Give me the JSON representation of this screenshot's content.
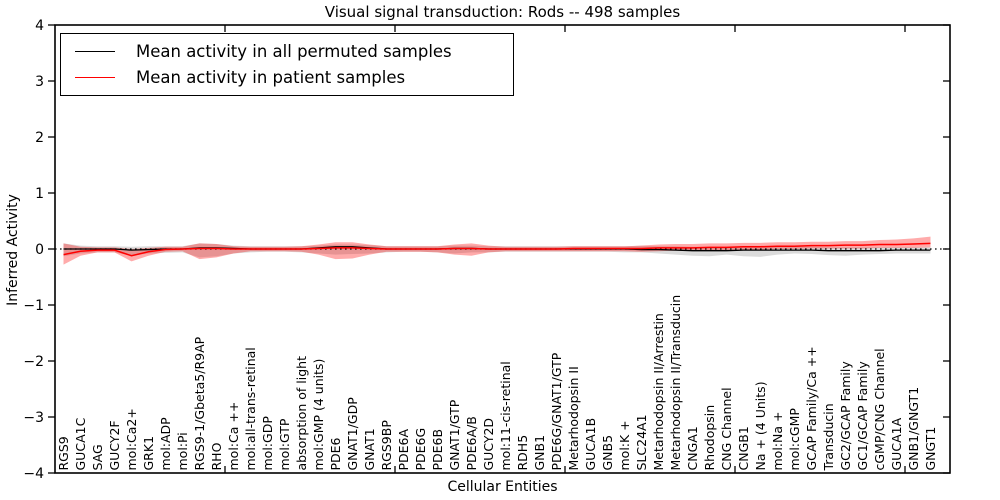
{
  "title": "Visual signal transduction: Rods -- 498 samples",
  "legend": {
    "items": [
      {
        "label": "Mean activity in all permuted samples",
        "color": "#000000"
      },
      {
        "label": "Mean activity in patient samples",
        "color": "#ff0000"
      }
    ]
  },
  "chart_data": {
    "type": "line",
    "title": "Visual signal transduction: Rods -- 498 samples",
    "xlabel": "Cellular Entities",
    "ylabel": "Inferred Activity",
    "ylim": [
      -4,
      4
    ],
    "yticks": [
      4,
      3,
      2,
      1,
      0,
      -1,
      -2,
      -3,
      -4
    ],
    "xticks": [
      10,
      20,
      30,
      40,
      50
    ],
    "grid": false,
    "zero_reference_line": true,
    "legend_position": "upper left",
    "categories": [
      "RGS9",
      "GUCA1C",
      "SAG",
      "GUCY2F",
      "mol:Ca2+",
      "GRK1",
      "mol:ADP",
      "mol:Pi",
      "RGS9-1/Gbeta5/R9AP",
      "RHO",
      "mol:Ca ++",
      "mol:all-trans-retinal",
      "mol:GDP",
      "mol:GTP",
      "absorption of light",
      "mol:GMP (4 units)",
      "PDE6",
      "GNAT1/GDP",
      "GNAT1",
      "RGS9BP",
      "PDE6A",
      "PDE6G",
      "PDE6B",
      "GNAT1/GTP",
      "PDE6A/B",
      "GUCY2D",
      "mol:11-cis-retinal",
      "RDH5",
      "GNB1",
      "PDE6G/GNAT1/GTP",
      "Metarhodopsin II",
      "GUCA1B",
      "GNB5",
      "mol:K +",
      "SLC24A1",
      "Metarhodopsin II/Arrestin",
      "Metarhodopsin II/Transducin",
      "CNGA1",
      "Rhodopsin",
      "CNG Channel",
      "CNGB1",
      "Na + (4 Units)",
      "mol:Na +",
      "mol:cGMP",
      "GCAP Family/Ca ++",
      "Transducin",
      "GC2/GCAP Family",
      "GC1/GCAP Family",
      "cGMP/CNG Channel",
      "GUCA1A",
      "GNB1/GNGT1",
      "GNGT1"
    ],
    "series": [
      {
        "name": "Mean activity in all permuted samples",
        "color": "#000000",
        "band_color": "rgba(0,0,0,0.14)",
        "values": [
          0.0,
          0.0,
          0.0,
          0.0,
          -0.02,
          -0.01,
          0.0,
          0.0,
          0.02,
          0.02,
          0.01,
          0.0,
          0.0,
          0.0,
          0.0,
          0.02,
          0.04,
          0.04,
          0.02,
          0.0,
          0.0,
          0.0,
          0.0,
          0.01,
          0.01,
          0.0,
          0.0,
          0.0,
          0.0,
          0.0,
          0.0,
          0.0,
          0.0,
          0.0,
          -0.01,
          -0.01,
          -0.02,
          -0.03,
          -0.03,
          -0.03,
          -0.02,
          -0.02,
          -0.02,
          -0.02,
          -0.02,
          -0.03,
          -0.03,
          -0.03,
          -0.03,
          -0.02,
          -0.02,
          -0.02
        ],
        "band_low": [
          -0.13,
          -0.08,
          -0.06,
          -0.06,
          -0.12,
          -0.08,
          -0.07,
          -0.06,
          -0.15,
          -0.13,
          -0.08,
          -0.06,
          -0.05,
          -0.05,
          -0.06,
          -0.08,
          -0.1,
          -0.09,
          -0.08,
          -0.06,
          -0.05,
          -0.05,
          -0.06,
          -0.08,
          -0.06,
          -0.06,
          -0.05,
          -0.05,
          -0.05,
          -0.05,
          -0.05,
          -0.05,
          -0.05,
          -0.06,
          -0.06,
          -0.08,
          -0.1,
          -0.12,
          -0.13,
          -0.1,
          -0.13,
          -0.14,
          -0.1,
          -0.08,
          -0.09,
          -0.11,
          -0.12,
          -0.1,
          -0.09,
          -0.08,
          -0.08,
          -0.08
        ],
        "band_high": [
          0.1,
          0.06,
          0.05,
          0.05,
          0.04,
          0.05,
          0.05,
          0.05,
          0.1,
          0.09,
          0.06,
          0.05,
          0.05,
          0.05,
          0.05,
          0.06,
          0.08,
          0.08,
          0.07,
          0.05,
          0.05,
          0.05,
          0.05,
          0.06,
          0.06,
          0.05,
          0.05,
          0.05,
          0.05,
          0.05,
          0.05,
          0.05,
          0.05,
          0.05,
          0.06,
          0.05,
          0.05,
          0.04,
          0.04,
          0.04,
          0.04,
          0.04,
          0.04,
          0.04,
          0.04,
          0.03,
          0.03,
          0.03,
          0.03,
          0.03,
          0.03,
          0.03
        ]
      },
      {
        "name": "Mean activity in patient samples",
        "color": "#ff0000",
        "band_color": "rgba(255,0,0,0.33)",
        "values": [
          -0.1,
          -0.04,
          -0.02,
          -0.02,
          -0.12,
          -0.05,
          -0.01,
          0.0,
          0.01,
          0.01,
          0.0,
          0.0,
          0.0,
          0.0,
          0.0,
          0.01,
          0.02,
          0.02,
          0.01,
          0.0,
          0.0,
          0.0,
          0.0,
          0.01,
          0.01,
          0.0,
          0.0,
          0.0,
          0.0,
          0.0,
          0.01,
          0.01,
          0.01,
          0.01,
          0.01,
          0.02,
          0.02,
          0.02,
          0.03,
          0.03,
          0.04,
          0.04,
          0.05,
          0.05,
          0.06,
          0.06,
          0.07,
          0.07,
          0.08,
          0.08,
          0.09,
          0.1
        ],
        "band_low": [
          -0.28,
          -0.12,
          -0.06,
          -0.06,
          -0.22,
          -0.12,
          -0.05,
          -0.04,
          -0.18,
          -0.15,
          -0.08,
          -0.04,
          -0.04,
          -0.04,
          -0.05,
          -0.1,
          -0.18,
          -0.17,
          -0.1,
          -0.05,
          -0.05,
          -0.05,
          -0.06,
          -0.1,
          -0.12,
          -0.06,
          -0.04,
          -0.04,
          -0.04,
          -0.04,
          -0.04,
          -0.04,
          -0.04,
          -0.04,
          -0.05,
          -0.04,
          -0.03,
          -0.03,
          -0.02,
          -0.02,
          -0.01,
          -0.01,
          0.0,
          0.0,
          0.01,
          0.01,
          0.01,
          0.01,
          0.02,
          0.02,
          0.02,
          0.03
        ],
        "band_high": [
          0.1,
          0.04,
          0.03,
          0.03,
          0.0,
          0.02,
          0.04,
          0.04,
          0.1,
          0.09,
          0.05,
          0.04,
          0.04,
          0.04,
          0.05,
          0.08,
          0.12,
          0.12,
          0.08,
          0.05,
          0.05,
          0.05,
          0.05,
          0.08,
          0.1,
          0.06,
          0.04,
          0.04,
          0.04,
          0.04,
          0.05,
          0.05,
          0.05,
          0.05,
          0.06,
          0.08,
          0.09,
          0.09,
          0.1,
          0.1,
          0.11,
          0.11,
          0.12,
          0.12,
          0.13,
          0.13,
          0.14,
          0.14,
          0.16,
          0.17,
          0.19,
          0.22
        ]
      }
    ]
  }
}
